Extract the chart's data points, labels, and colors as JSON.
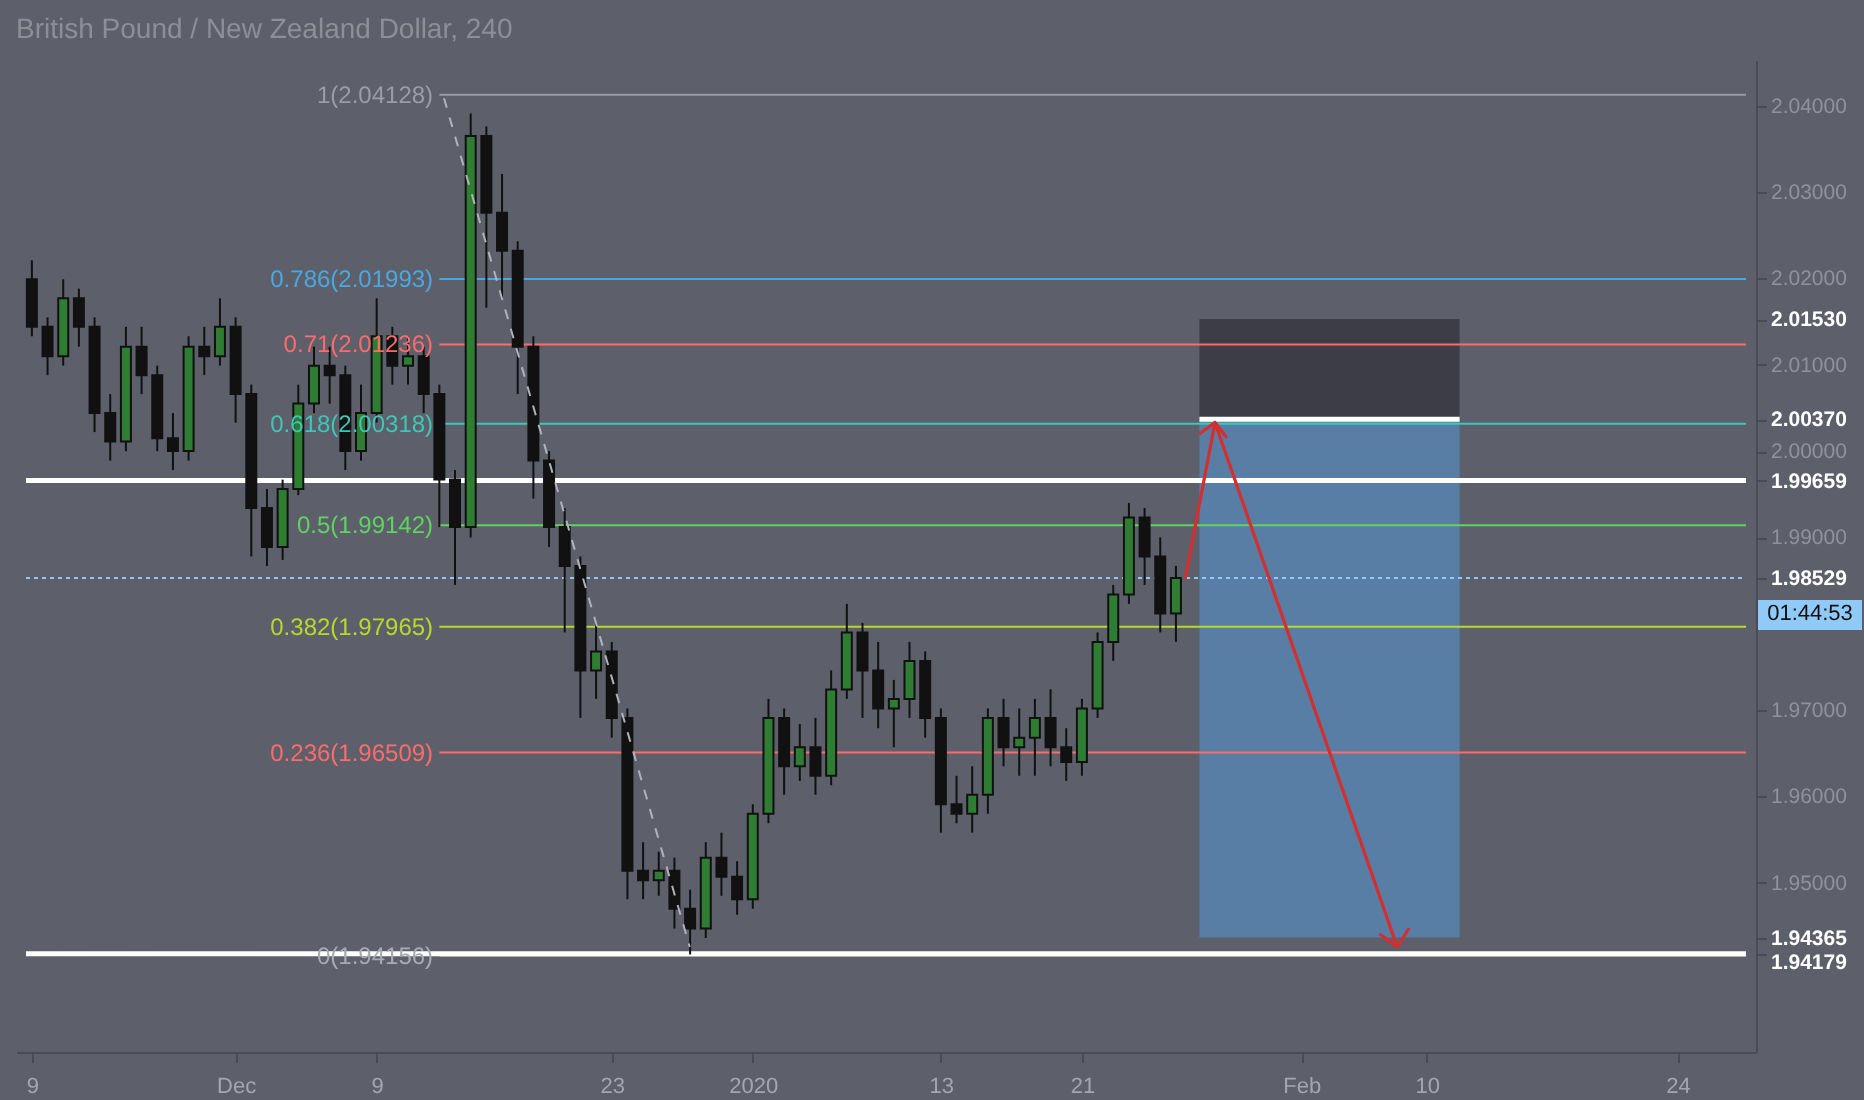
{
  "chart_data": {
    "type": "candlestick",
    "title": "British Pound / New Zealand Dollar, 240",
    "categories": [
      "9",
      null,
      null,
      null,
      null,
      null,
      null,
      null,
      null,
      null,
      null,
      null,
      null,
      "Dec",
      null,
      null,
      null,
      null,
      null,
      null,
      null,
      null,
      "9",
      null,
      null,
      null,
      null,
      null,
      null,
      null,
      null,
      null,
      null,
      null,
      null,
      null,
      null,
      "23",
      null,
      null,
      null,
      null,
      null,
      null,
      null,
      null,
      "2020",
      null,
      null,
      null,
      null,
      null,
      null,
      null,
      null,
      null,
      null,
      null,
      "13",
      null,
      null,
      null,
      null,
      null,
      null,
      null,
      null,
      "21",
      null,
      null,
      null,
      null,
      null,
      null,
      null,
      null,
      null,
      null,
      null,
      null,
      null,
      "Feb",
      null,
      null,
      null,
      null,
      null,
      null,
      null,
      "10",
      null,
      null,
      null,
      null,
      null,
      null,
      null,
      null,
      null,
      null,
      null,
      null,
      null,
      null,
      null,
      "24",
      null,
      null,
      null,
      null
    ],
    "ohlc": [
      [
        2.0199,
        2.0221,
        2.0133,
        2.0144
      ],
      [
        2.0144,
        2.0155,
        2.0088,
        2.011
      ],
      [
        2.011,
        2.0199,
        2.0099,
        2.0177
      ],
      [
        2.0177,
        2.0188,
        2.0121,
        2.0144
      ],
      [
        2.0144,
        2.0155,
        2.0022,
        2.0044
      ],
      [
        2.0044,
        2.0066,
        1.9989,
        2.0011
      ],
      [
        2.0011,
        2.0144,
        2.0,
        2.0121
      ],
      [
        2.0121,
        2.0144,
        2.0066,
        2.0088
      ],
      [
        2.0088,
        2.0099,
        2.0,
        2.0015
      ],
      [
        2.0015,
        2.0044,
        1.9978,
        2.0
      ],
      [
        2.0,
        2.0133,
        1.9989,
        2.0121
      ],
      [
        2.0121,
        2.0144,
        2.0088,
        2.011
      ],
      [
        2.011,
        2.0177,
        2.0099,
        2.0144
      ],
      [
        2.0144,
        2.0155,
        2.0033,
        2.0066
      ],
      [
        2.0066,
        2.0077,
        1.9878,
        1.9934
      ],
      [
        1.9934,
        1.9956,
        1.9867,
        1.9889
      ],
      [
        1.9889,
        1.9967,
        1.9874,
        1.9956
      ],
      [
        1.9956,
        2.0077,
        1.9949,
        2.0055
      ],
      [
        2.0055,
        2.0121,
        2.0044,
        2.0099
      ],
      [
        2.0099,
        2.0121,
        2.0055,
        2.0088
      ],
      [
        2.0088,
        2.0099,
        1.9978,
        2.0
      ],
      [
        2.0,
        2.0077,
        1.9989,
        2.0044
      ],
      [
        2.0044,
        2.0177,
        2.0033,
        2.0133
      ],
      [
        2.0133,
        2.0144,
        2.0077,
        2.0099
      ],
      [
        2.0099,
        2.0133,
        2.0077,
        2.011
      ],
      [
        2.011,
        2.0121,
        2.0044,
        2.0066
      ],
      [
        2.0066,
        2.0077,
        1.9912,
        1.9967
      ],
      [
        1.9967,
        1.9978,
        1.9845,
        1.9912
      ],
      [
        1.9912,
        2.0391,
        1.99,
        2.0365
      ],
      [
        2.0365,
        2.0376,
        2.0166,
        2.0276
      ],
      [
        2.0276,
        2.0321,
        2.0177,
        2.0232
      ],
      [
        2.0232,
        2.0243,
        2.0066,
        2.0121
      ],
      [
        2.0121,
        2.0133,
        1.9945,
        1.9989
      ],
      [
        1.9989,
        2.0,
        1.9889,
        1.9912
      ],
      [
        1.9912,
        1.9934,
        1.979,
        1.9867
      ],
      [
        1.9867,
        1.9878,
        1.9691,
        1.9746
      ],
      [
        1.9746,
        1.9801,
        1.9713,
        1.9768
      ],
      [
        1.9768,
        1.9779,
        1.9668,
        1.9691
      ],
      [
        1.9691,
        1.9702,
        1.9481,
        1.9514
      ],
      [
        1.9514,
        1.9547,
        1.9481,
        1.9503
      ],
      [
        1.9503,
        1.9536,
        1.9485,
        1.9514
      ],
      [
        1.9514,
        1.9529,
        1.9447,
        1.947
      ],
      [
        1.947,
        1.9492,
        1.9417,
        1.9447
      ],
      [
        1.9447,
        1.9547,
        1.9436,
        1.9529
      ],
      [
        1.9529,
        1.9558,
        1.9485,
        1.9507
      ],
      [
        1.9507,
        1.9525,
        1.9463,
        1.9481
      ],
      [
        1.9481,
        1.9591,
        1.947,
        1.958
      ],
      [
        1.958,
        1.9713,
        1.9569,
        1.9691
      ],
      [
        1.9691,
        1.9702,
        1.9602,
        1.9635
      ],
      [
        1.9635,
        1.9684,
        1.9618,
        1.9657
      ],
      [
        1.9657,
        1.9691,
        1.9602,
        1.9624
      ],
      [
        1.9624,
        1.9746,
        1.9613,
        1.9724
      ],
      [
        1.9724,
        1.9823,
        1.9713,
        1.979
      ],
      [
        1.979,
        1.9801,
        1.9691,
        1.9746
      ],
      [
        1.9746,
        1.9779,
        1.9679,
        1.9702
      ],
      [
        1.9702,
        1.9735,
        1.9657,
        1.9713
      ],
      [
        1.9713,
        1.9779,
        1.9691,
        1.9757
      ],
      [
        1.9757,
        1.9768,
        1.9668,
        1.9691
      ],
      [
        1.9691,
        1.9702,
        1.9558,
        1.9591
      ],
      [
        1.9591,
        1.9624,
        1.9569,
        1.958
      ],
      [
        1.958,
        1.9635,
        1.9558,
        1.9602
      ],
      [
        1.9602,
        1.9702,
        1.958,
        1.9691
      ],
      [
        1.9691,
        1.9713,
        1.9635,
        1.9657
      ],
      [
        1.9657,
        1.9702,
        1.9624,
        1.9668
      ],
      [
        1.9668,
        1.9713,
        1.9624,
        1.9691
      ],
      [
        1.9691,
        1.9724,
        1.9635,
        1.9657
      ],
      [
        1.9657,
        1.9679,
        1.9618,
        1.964
      ],
      [
        1.964,
        1.9713,
        1.9624,
        1.9702
      ],
      [
        1.9702,
        1.979,
        1.9691,
        1.9779
      ],
      [
        1.9779,
        1.9845,
        1.9757,
        1.9834
      ],
      [
        1.9834,
        1.994,
        1.9823,
        1.9923
      ],
      [
        1.9923,
        1.9934,
        1.9845,
        1.9878
      ],
      [
        1.9878,
        1.99,
        1.979,
        1.9812
      ],
      [
        1.9812,
        1.9867,
        1.9779,
        1.9853
      ],
      null,
      null,
      null,
      null,
      null,
      null,
      null,
      null,
      null,
      null,
      null,
      null,
      null,
      null,
      null,
      null,
      null,
      null,
      null,
      null,
      null,
      null,
      null,
      null,
      null,
      null,
      null,
      null,
      null,
      null,
      null,
      null,
      null,
      null,
      null,
      null
    ],
    "ylim": [
      1.9304,
      2.0453
    ],
    "yticks": [
      {
        "value": 1.94179,
        "label": "1.94179"
      },
      {
        "value": 1.94365,
        "label": "1.94365"
      },
      {
        "value": 1.95,
        "label": "1.95000"
      },
      {
        "value": 1.96,
        "label": "1.96000"
      },
      {
        "value": 1.97,
        "label": "1.97000"
      },
      {
        "value": 1.98529,
        "label": "1.98529"
      },
      {
        "value": 1.99,
        "label": "1.99000"
      },
      {
        "value": 1.99659,
        "label": "1.99659"
      },
      {
        "value": 2.0,
        "label": "2.00000"
      },
      {
        "value": 2.0037,
        "label": "2.00370"
      },
      {
        "value": 2.01,
        "label": "2.01000"
      },
      {
        "value": 2.0153,
        "label": "2.01530"
      },
      {
        "value": 2.02,
        "label": "2.02000"
      },
      {
        "value": 2.03,
        "label": "2.03000"
      },
      {
        "value": 2.04,
        "label": "2.04000"
      }
    ],
    "ref_lines": [
      {
        "axis": "y",
        "value": 2.04128,
        "label": "1(2.04128)",
        "color": "#9a9da6"
      },
      {
        "axis": "y",
        "value": 2.01993,
        "label": "0.786(2.01993)",
        "color": "#4aa8e0"
      },
      {
        "axis": "y",
        "value": 2.01236,
        "label": "0.71(2.01236)",
        "color": "#ff6b6b"
      },
      {
        "axis": "y",
        "value": 2.00318,
        "label": "0.618(2.00318)",
        "color": "#3cc7b8"
      },
      {
        "axis": "y",
        "value": 1.99142,
        "label": "0.5(1.99142)",
        "color": "#5fd35f"
      },
      {
        "axis": "y",
        "value": 1.97965,
        "label": "0.382(1.97965)",
        "color": "#b8d92a"
      },
      {
        "axis": "y",
        "value": 1.96509,
        "label": "0.236(1.96509)",
        "color": "#ff6b6b"
      },
      {
        "axis": "y",
        "value": 1.94156,
        "label": "0(1.94156)",
        "color": "#a7aab2"
      },
      {
        "axis": "y",
        "value": 2.0037,
        "color": "#ffffff"
      },
      {
        "axis": "y",
        "value": 1.99659,
        "color": "#ffffff"
      },
      {
        "axis": "y",
        "value": 1.98529,
        "color": "#90caf9",
        "line_style": "dotted"
      },
      {
        "axis": "y",
        "value": 1.94179,
        "color": "#ffffff"
      }
    ],
    "bands": [
      {
        "axis": "y",
        "from": 2.0037,
        "to": 2.0153,
        "color": "#3c3d46"
      },
      {
        "axis": "y",
        "from": 2.0037,
        "to": 1.94365,
        "color": "#587ea6"
      }
    ],
    "annotations": [
      "01:44:53"
    ]
  }
}
